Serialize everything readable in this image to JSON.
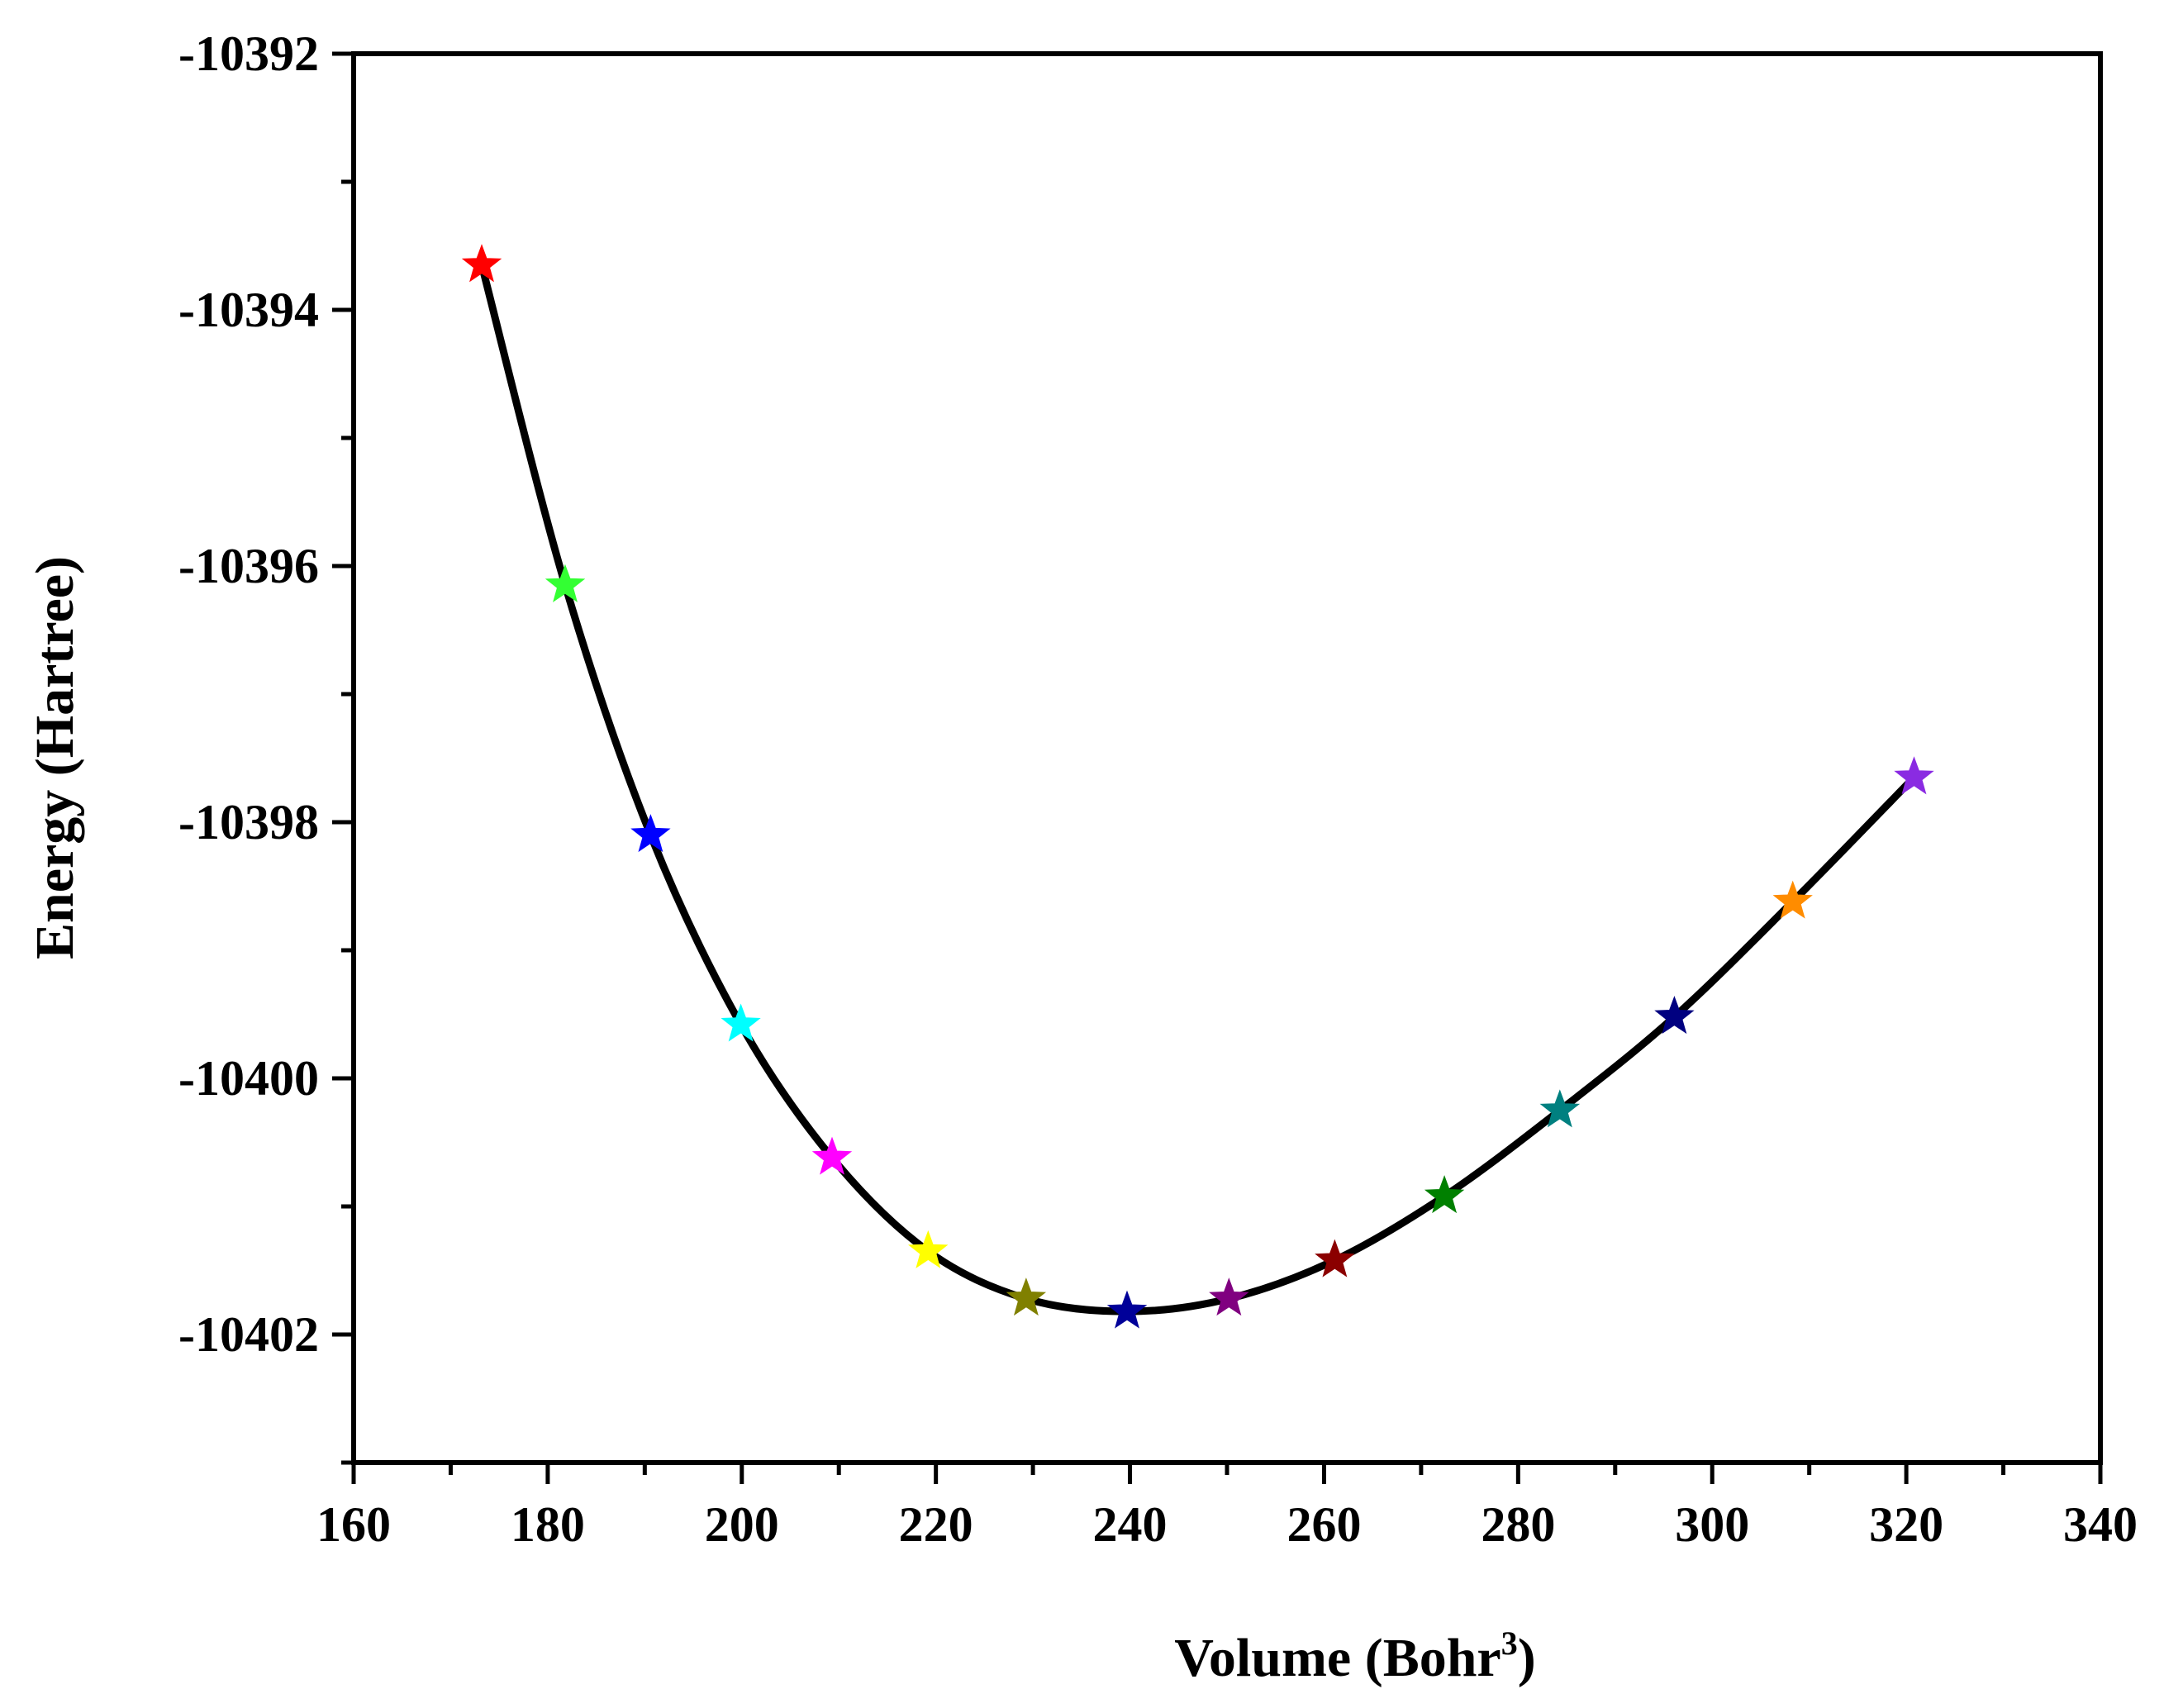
{
  "chart_data": {
    "type": "line",
    "title": "",
    "xlabel": "Volume (Bohr",
    "xlabel_superscript": "3",
    "xlabel_close": ")",
    "ylabel": "Energy (Hartree)",
    "xlim": [
      160,
      340
    ],
    "ylim": [
      -10403,
      -10392
    ],
    "x_major_ticks": [
      160,
      180,
      200,
      220,
      240,
      260,
      280,
      300,
      320,
      340
    ],
    "x_minor_step": 10,
    "y_major_ticks": [
      -10392,
      -10394,
      -10396,
      -10398,
      -10400,
      -10402
    ],
    "y_minor_step": 1,
    "x_tick_labels": [
      "160",
      "180",
      "200",
      "220",
      "240",
      "260",
      "280",
      "300",
      "320",
      "340"
    ],
    "y_tick_labels": [
      "-10392",
      "-10394",
      "-10396",
      "-10398",
      "-10400",
      "-10402"
    ],
    "grid": false,
    "line_color": "#000000",
    "points": [
      {
        "x": 173.2,
        "y": -10393.65,
        "color": "#ff0000"
      },
      {
        "x": 181.8,
        "y": -10396.15,
        "color": "#33ff33"
      },
      {
        "x": 190.6,
        "y": -10398.1,
        "color": "#0000ff"
      },
      {
        "x": 199.9,
        "y": -10399.58,
        "color": "#00ffff"
      },
      {
        "x": 209.3,
        "y": -10400.62,
        "color": "#ff00ff"
      },
      {
        "x": 219.2,
        "y": -10401.35,
        "color": "#ffff00"
      },
      {
        "x": 229.3,
        "y": -10401.72,
        "color": "#808000"
      },
      {
        "x": 239.7,
        "y": -10401.82,
        "color": "#000099"
      },
      {
        "x": 250.2,
        "y": -10401.72,
        "color": "#800080"
      },
      {
        "x": 261.1,
        "y": -10401.42,
        "color": "#8b0000"
      },
      {
        "x": 272.4,
        "y": -10400.92,
        "color": "#008000"
      },
      {
        "x": 284.3,
        "y": -10400.25,
        "color": "#008080"
      },
      {
        "x": 296.1,
        "y": -10399.52,
        "color": "#000080"
      },
      {
        "x": 308.3,
        "y": -10398.62,
        "color": "#ff8c00"
      },
      {
        "x": 320.8,
        "y": -10397.65,
        "color": "#8a2be2"
      }
    ]
  }
}
